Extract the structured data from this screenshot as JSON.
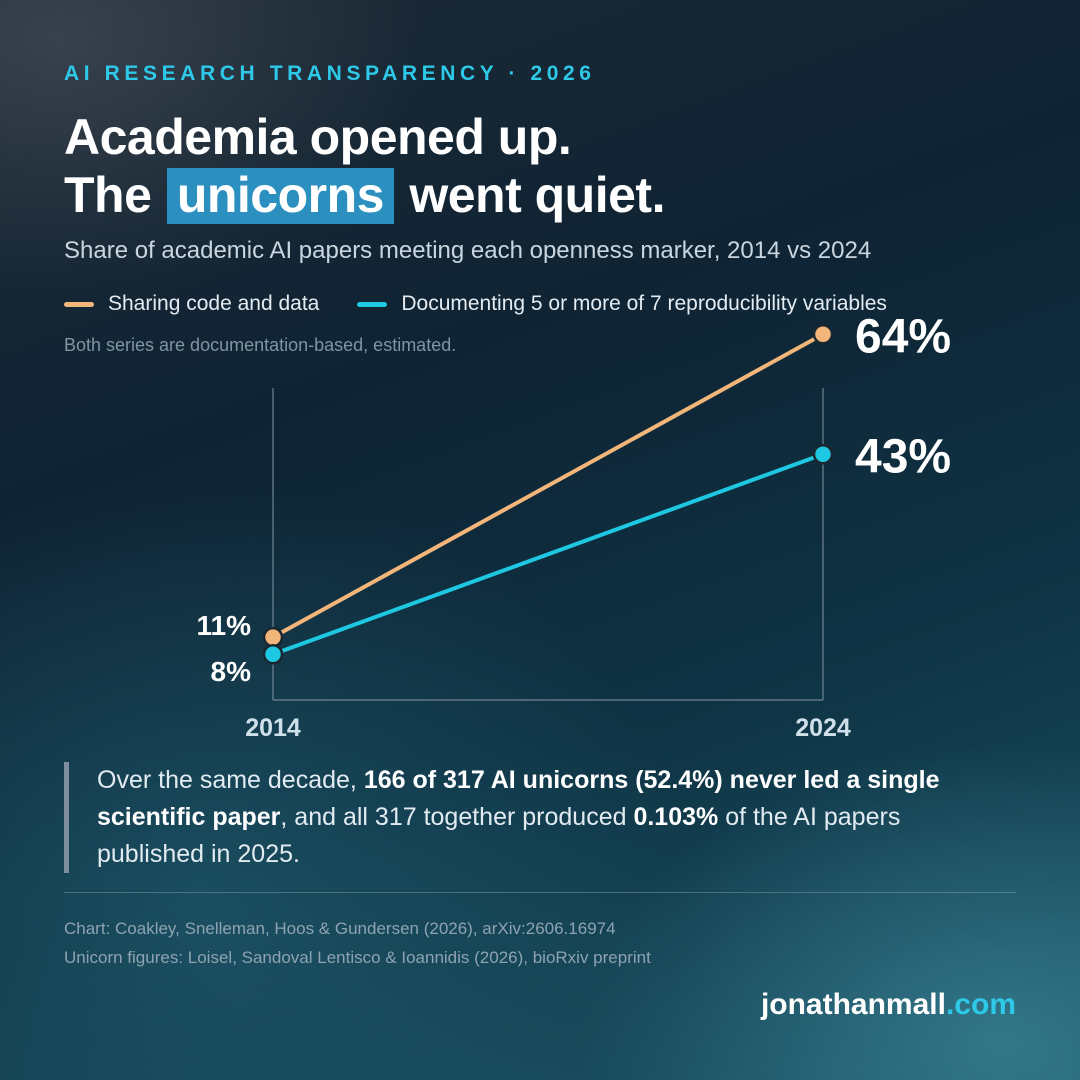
{
  "kicker": "AI RESEARCH TRANSPARENCY · 2026",
  "headline": {
    "line1": "Academia opened up.",
    "line2_pre": "The",
    "line2_highlight": "unicorns",
    "line2_post": "went quiet."
  },
  "subtitle": "Share of academic AI papers meeting each openness marker, 2014 vs 2024",
  "note": "Both series are documentation-based, estimated.",
  "colors": {
    "accent": "#2ec8e8",
    "highlight": "#2b8fc0",
    "series_code_data": "#f2b67a",
    "series_reproducibility": "#1ec8e3"
  },
  "chart_data": {
    "type": "line",
    "x": [
      "2014",
      "2024"
    ],
    "ylim": [
      0,
      70
    ],
    "grid": false,
    "legend_position": "top-left",
    "series": [
      {
        "name": "Sharing code and data",
        "values": [
          11,
          64
        ],
        "labels": [
          "11%",
          "64%"
        ],
        "color": "#f2b67a"
      },
      {
        "name": "Documenting 5 or more of 7 reproducibility variables",
        "values": [
          8,
          43
        ],
        "labels": [
          "8%",
          "43%"
        ],
        "color": "#1ec8e3"
      }
    ]
  },
  "callout": {
    "t1": "Over the same decade, ",
    "b1": "166 of 317 AI unicorns (52.4%) never led a single scientific paper",
    "t2": ", and all 317 together produced ",
    "b2": "0.103%",
    "t3": " of the AI papers published in 2025."
  },
  "credits": {
    "line1": "Chart: Coakley, Snelleman, Hoos & Gundersen (2026), arXiv:2606.16974",
    "line2": "Unicorn figures: Loisel, Sandoval Lentisco & Ioannidis (2026), bioRxiv preprint"
  },
  "brand": {
    "name": "jonathanmall",
    "tld": ".com"
  }
}
